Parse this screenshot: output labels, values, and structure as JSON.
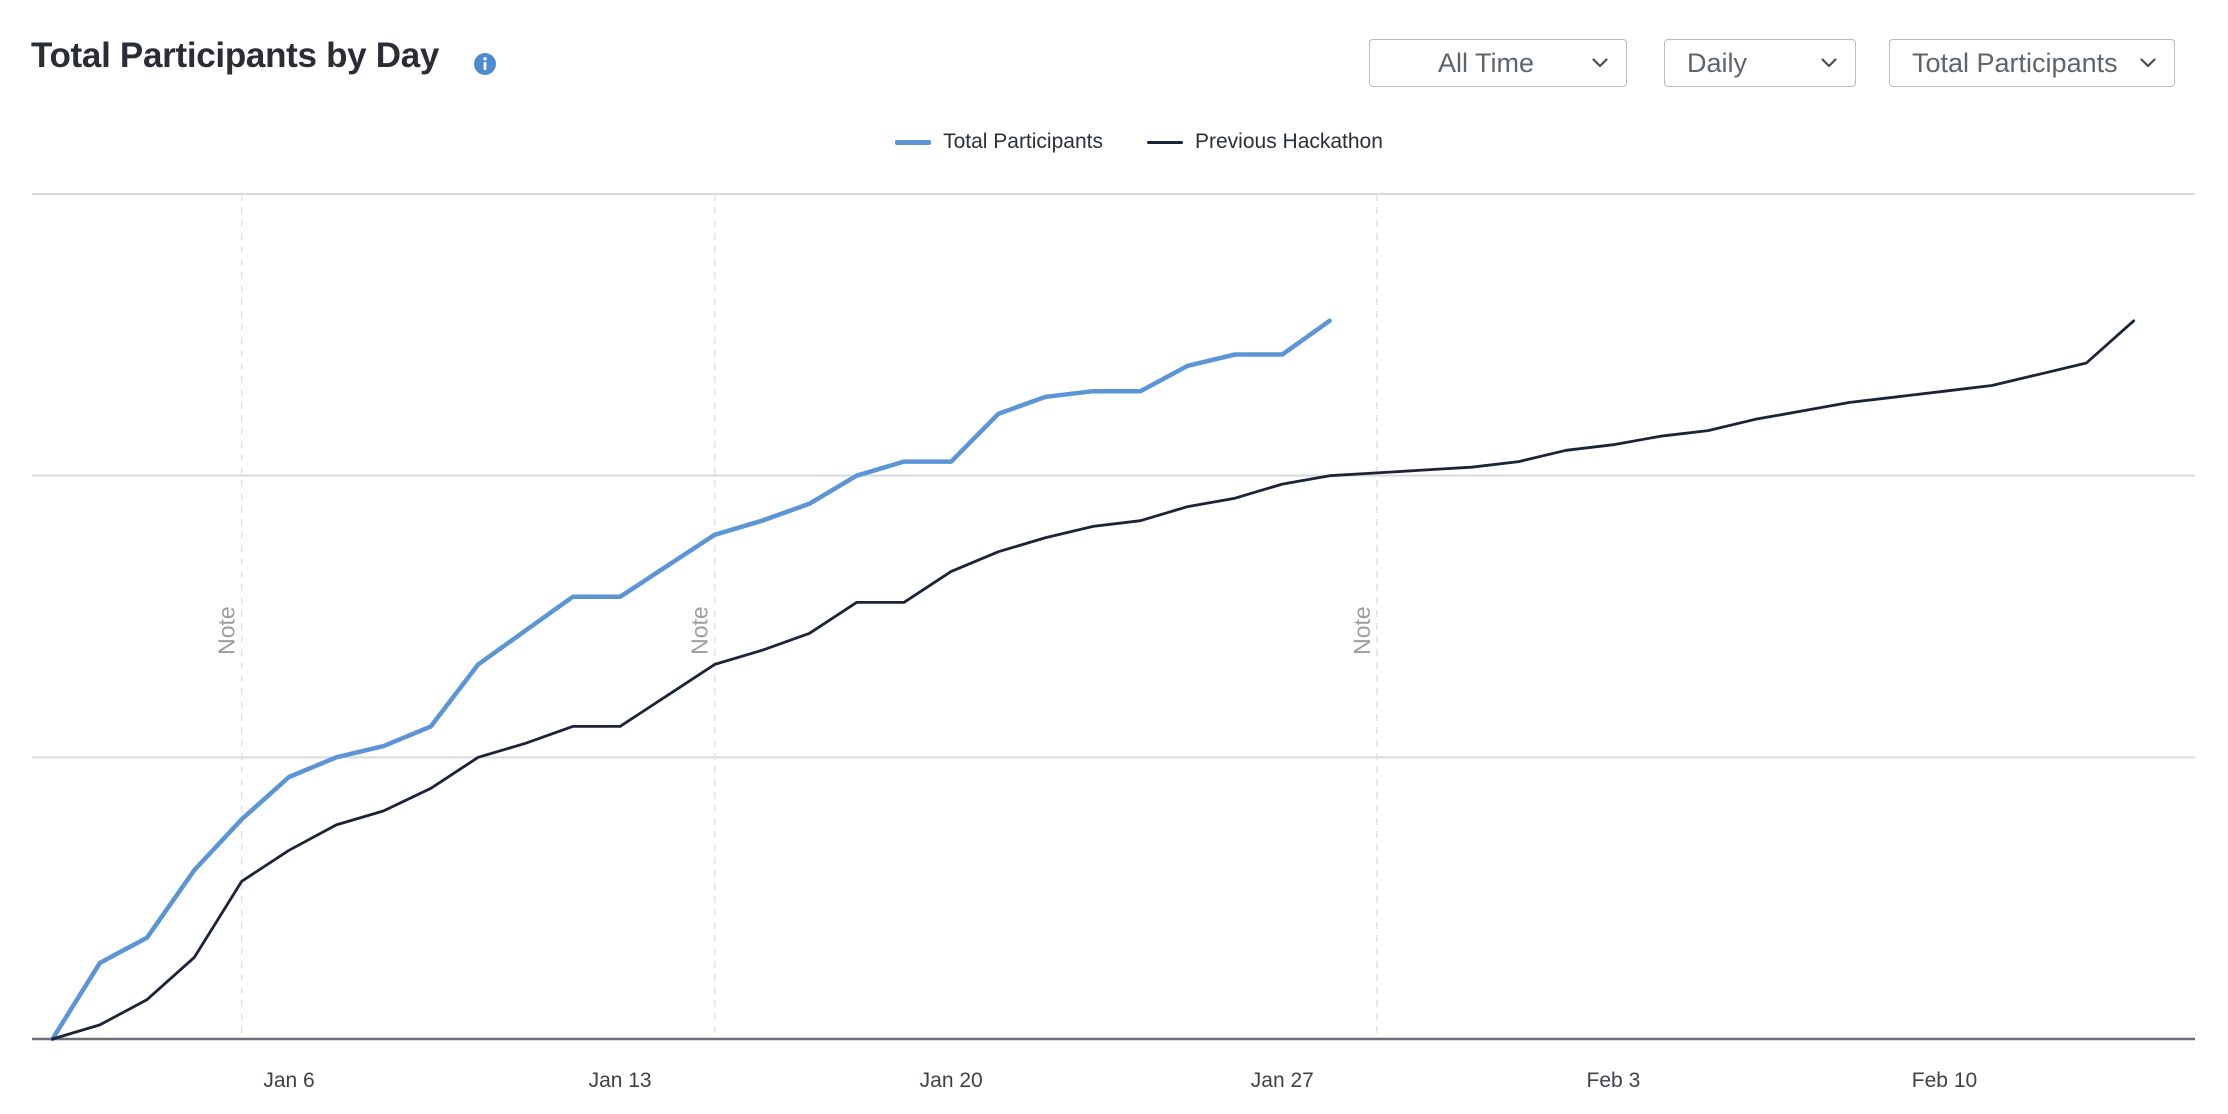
{
  "header": {
    "title": "Total Participants by Day",
    "info_icon": "info-icon"
  },
  "controls": {
    "range": "All Time",
    "interval": "Daily",
    "metric": "Total Participants"
  },
  "colors": {
    "total": "#5b95d6",
    "previous": "#1c2337",
    "grid": "#d7d9dc",
    "axis": "#6b6f75"
  },
  "chart_data": {
    "type": "line",
    "x_tick_labels": [
      "Jan 6",
      "Jan 13",
      "Jan 20",
      "Jan 27",
      "Feb 3",
      "Feb 10"
    ],
    "x_tick_days": [
      6,
      13,
      20,
      27,
      34,
      41
    ],
    "x_range_days": [
      1,
      45.5
    ],
    "y_range": [
      0,
      300
    ],
    "y_gridlines": [
      100,
      200,
      300
    ],
    "grid": true,
    "legend_position": "top-center",
    "notes": [
      {
        "label": "Note",
        "day": 5
      },
      {
        "label": "Note",
        "day": 15
      },
      {
        "label": "Note",
        "day": 29
      }
    ],
    "series": [
      {
        "name": "Total Participants",
        "x_start_day": 1,
        "values": [
          0,
          27,
          36,
          60,
          78,
          93,
          100,
          104,
          111,
          133,
          145,
          157,
          157,
          168,
          179,
          184,
          190,
          200,
          205,
          205,
          222,
          228,
          230,
          230,
          239,
          243,
          243,
          255
        ]
      },
      {
        "name": "Previous Hackathon",
        "x_start_day": 1,
        "values": [
          0,
          5,
          14,
          29,
          56,
          67,
          76,
          81,
          89,
          100,
          105,
          111,
          111,
          122,
          133,
          138,
          144,
          155,
          155,
          166,
          173,
          178,
          182,
          184,
          189,
          192,
          197,
          200,
          201,
          202,
          203,
          205,
          209,
          211,
          214,
          216,
          220,
          223,
          226,
          228,
          230,
          232,
          236,
          240,
          255
        ]
      }
    ]
  }
}
